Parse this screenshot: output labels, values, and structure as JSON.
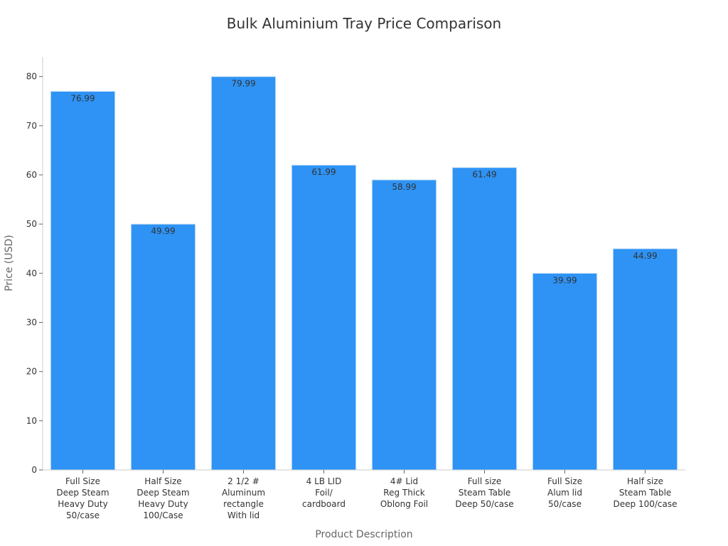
{
  "chart_data": {
    "type": "bar",
    "title": "Bulk Aluminium Tray Price Comparison",
    "xlabel": "Product Description",
    "ylabel": "Price (USD)",
    "categories": [
      [
        "Full Size",
        "Deep Steam",
        "Heavy Duty",
        "50/case"
      ],
      [
        "Half Size",
        "Deep Steam",
        "Heavy Duty",
        "100/Case"
      ],
      [
        "2 1/2 #",
        "Aluminum",
        "rectangle",
        "With lid"
      ],
      [
        "4 LB LID",
        "Foil/",
        "cardboard"
      ],
      [
        "4# Lid",
        "Reg Thick",
        "Oblong Foil"
      ],
      [
        "Full size",
        "Steam Table",
        "Deep 50/case"
      ],
      [
        "Full Size",
        "Alum lid",
        "50/case"
      ],
      [
        "Half size",
        "Steam Table",
        "Deep 100/case"
      ]
    ],
    "values": [
      76.99,
      49.99,
      79.99,
      61.99,
      58.99,
      61.49,
      39.99,
      44.99
    ],
    "ylim": [
      0,
      84
    ],
    "yticks": [
      0,
      10,
      20,
      30,
      40,
      50,
      60,
      70,
      80
    ],
    "grid": false,
    "bar_color": "#2e93f5"
  }
}
